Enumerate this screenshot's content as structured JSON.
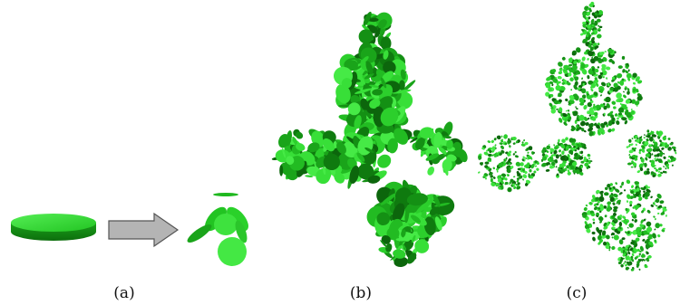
{
  "captions": {
    "a": "(a)",
    "b": "(b)",
    "c": "(c)"
  },
  "colors": {
    "disc_light": "#3ee23e",
    "disc_mid": "#1fb81f",
    "disc_dark": "#0f7a0f",
    "disc_edge": "#0a5c0a",
    "arrow_fill": "#b4b4b4",
    "arrow_stroke": "#555555"
  },
  "panels": {
    "a": {
      "description_icon": "disc-to-children-icon"
    },
    "b": {
      "description_icon": "disc-ifs-fractal-icon"
    },
    "c": {
      "description_icon": "leaf-fractal-icon"
    }
  }
}
